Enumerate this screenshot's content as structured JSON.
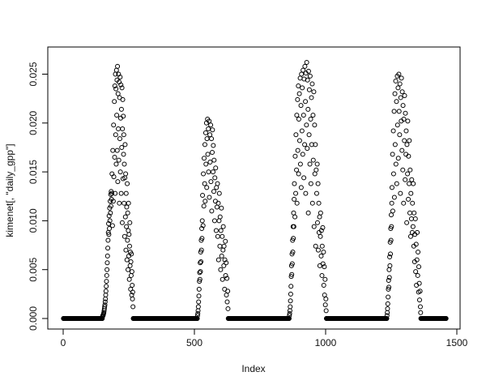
{
  "window": {
    "background": "#ffffff"
  },
  "chart_data": {
    "type": "scatter",
    "title": "",
    "xlabel": "Index",
    "ylabel": "kimenet[, \"daily_gpp\"]",
    "marker": "open-circle",
    "point_color": "#000000",
    "grid": false,
    "legend_position": "none",
    "xlim": [
      0,
      1500
    ],
    "ylim": [
      0,
      0.0268
    ],
    "xticks": [
      0,
      500,
      1000,
      1500
    ],
    "xtick_labels": [
      "0",
      "500",
      "1000",
      "1500"
    ],
    "yticks": [
      0,
      0.005,
      0.01,
      0.015,
      0.02,
      0.025
    ],
    "ytick_labels": [
      "0.000",
      "0.005",
      "0.010",
      "0.015",
      "0.020",
      "0.025"
    ],
    "y_unit": 0.0001,
    "zero_runs": [
      [
        1,
        149
      ],
      [
        267,
        511
      ],
      [
        629,
        861
      ],
      [
        1003,
        1233
      ],
      [
        1363,
        1459
      ]
    ],
    "points": [
      [
        150,
        2
      ],
      [
        151,
        3
      ],
      [
        152,
        3
      ],
      [
        153,
        4
      ],
      [
        154,
        5
      ],
      [
        155,
        6
      ],
      [
        156,
        8
      ],
      [
        157,
        10
      ],
      [
        158,
        12
      ],
      [
        159,
        14
      ],
      [
        160,
        17
      ],
      [
        161,
        20
      ],
      [
        162,
        24
      ],
      [
        163,
        28
      ],
      [
        164,
        33
      ],
      [
        165,
        38
      ],
      [
        166,
        44
      ],
      [
        167,
        50
      ],
      [
        168,
        57
      ],
      [
        169,
        64
      ],
      [
        170,
        72
      ],
      [
        171,
        80
      ],
      [
        172,
        88
      ],
      [
        173,
        97
      ],
      [
        174,
        86
      ],
      [
        175,
        105
      ],
      [
        176,
        92
      ],
      [
        177,
        113
      ],
      [
        178,
        100
      ],
      [
        179,
        120
      ],
      [
        180,
        108
      ],
      [
        181,
        127
      ],
      [
        182,
        115
      ],
      [
        183,
        130
      ],
      [
        184,
        122
      ],
      [
        185,
        128
      ],
      [
        186,
        148
      ],
      [
        188,
        95
      ],
      [
        189,
        172
      ],
      [
        191,
        120
      ],
      [
        192,
        198
      ],
      [
        193,
        145
      ],
      [
        195,
        222
      ],
      [
        196,
        165
      ],
      [
        197,
        238
      ],
      [
        198,
        128
      ],
      [
        199,
        250
      ],
      [
        200,
        188
      ],
      [
        201,
        235
      ],
      [
        202,
        158
      ],
      [
        203,
        254
      ],
      [
        204,
        208
      ],
      [
        205,
        244
      ],
      [
        206,
        172
      ],
      [
        207,
        258
      ],
      [
        208,
        140
      ],
      [
        209,
        230
      ],
      [
        210,
        194
      ],
      [
        211,
        250
      ],
      [
        212,
        162
      ],
      [
        213,
        242
      ],
      [
        214,
        118
      ],
      [
        215,
        226
      ],
      [
        216,
        184
      ],
      [
        217,
        247
      ],
      [
        218,
        150
      ],
      [
        219,
        205
      ],
      [
        220,
        239
      ],
      [
        221,
        128
      ],
      [
        222,
        214
      ],
      [
        223,
        175
      ],
      [
        224,
        236
      ],
      [
        225,
        98
      ],
      [
        226,
        194
      ],
      [
        227,
        224
      ],
      [
        228,
        143
      ],
      [
        229,
        207
      ],
      [
        230,
        168
      ],
      [
        231,
        188
      ],
      [
        232,
        118
      ],
      [
        233,
        158
      ],
      [
        234,
        84
      ],
      [
        235,
        144
      ],
      [
        236,
        178
      ],
      [
        237,
        104
      ],
      [
        238,
        148
      ],
      [
        239,
        70
      ],
      [
        240,
        128
      ],
      [
        241,
        94
      ],
      [
        242,
        114
      ],
      [
        243,
        60
      ],
      [
        244,
        138
      ],
      [
        245,
        80
      ],
      [
        246,
        108
      ],
      [
        247,
        50
      ],
      [
        248,
        90
      ],
      [
        249,
        118
      ],
      [
        250,
        64
      ],
      [
        251,
        86
      ],
      [
        252,
        40
      ],
      [
        253,
        74
      ],
      [
        254,
        98
      ],
      [
        255,
        54
      ],
      [
        256,
        68
      ],
      [
        257,
        30
      ],
      [
        258,
        58
      ],
      [
        259,
        44
      ],
      [
        260,
        66
      ],
      [
        261,
        24
      ],
      [
        262,
        48
      ],
      [
        263,
        34
      ],
      [
        264,
        20
      ],
      [
        265,
        27
      ],
      [
        266,
        12
      ],
      [
        512,
        3
      ],
      [
        513,
        5
      ],
      [
        514,
        8
      ],
      [
        515,
        12
      ],
      [
        516,
        17
      ],
      [
        517,
        23
      ],
      [
        518,
        30
      ],
      [
        519,
        38
      ],
      [
        520,
        47
      ],
      [
        521,
        40
      ],
      [
        522,
        57
      ],
      [
        523,
        48
      ],
      [
        524,
        68
      ],
      [
        525,
        58
      ],
      [
        526,
        80
      ],
      [
        527,
        70
      ],
      [
        528,
        92
      ],
      [
        529,
        82
      ],
      [
        530,
        100
      ],
      [
        531,
        126
      ],
      [
        533,
        95
      ],
      [
        534,
        148
      ],
      [
        536,
        115
      ],
      [
        537,
        164
      ],
      [
        539,
        138
      ],
      [
        540,
        178
      ],
      [
        541,
        120
      ],
      [
        543,
        190
      ],
      [
        544,
        158
      ],
      [
        546,
        200
      ],
      [
        547,
        134
      ],
      [
        548,
        184
      ],
      [
        550,
        204
      ],
      [
        551,
        168
      ],
      [
        553,
        194
      ],
      [
        554,
        150
      ],
      [
        556,
        202
      ],
      [
        557,
        124
      ],
      [
        559,
        188
      ],
      [
        560,
        160
      ],
      [
        562,
        198
      ],
      [
        563,
        140
      ],
      [
        565,
        184
      ],
      [
        566,
        110
      ],
      [
        568,
        170
      ],
      [
        569,
        193
      ],
      [
        571,
        150
      ],
      [
        572,
        177
      ],
      [
        574,
        130
      ],
      [
        575,
        162
      ],
      [
        577,
        100
      ],
      [
        578,
        144
      ],
      [
        580,
        120
      ],
      [
        581,
        154
      ],
      [
        583,
        90
      ],
      [
        584,
        134
      ],
      [
        586,
        114
      ],
      [
        588,
        138
      ],
      [
        589,
        84
      ],
      [
        591,
        118
      ],
      [
        592,
        60
      ],
      [
        594,
        100
      ],
      [
        595,
        128
      ],
      [
        597,
        74
      ],
      [
        598,
        104
      ],
      [
        600,
        50
      ],
      [
        601,
        90
      ],
      [
        603,
        113
      ],
      [
        604,
        64
      ],
      [
        606,
        84
      ],
      [
        607,
        40
      ],
      [
        609,
        70
      ],
      [
        610,
        94
      ],
      [
        612,
        54
      ],
      [
        613,
        74
      ],
      [
        615,
        30
      ],
      [
        616,
        60
      ],
      [
        618,
        79
      ],
      [
        619,
        44
      ],
      [
        621,
        57
      ],
      [
        622,
        24
      ],
      [
        624,
        41
      ],
      [
        625,
        17
      ],
      [
        627,
        28
      ],
      [
        628,
        10
      ],
      [
        862,
        3
      ],
      [
        863,
        5
      ],
      [
        864,
        8
      ],
      [
        865,
        12
      ],
      [
        866,
        18
      ],
      [
        867,
        25
      ],
      [
        868,
        33
      ],
      [
        869,
        43
      ],
      [
        870,
        54
      ],
      [
        871,
        45
      ],
      [
        872,
        66
      ],
      [
        873,
        56
      ],
      [
        874,
        80
      ],
      [
        875,
        68
      ],
      [
        876,
        94
      ],
      [
        877,
        82
      ],
      [
        878,
        108
      ],
      [
        879,
        94
      ],
      [
        880,
        122
      ],
      [
        881,
        138
      ],
      [
        883,
        104
      ],
      [
        884,
        166
      ],
      [
        886,
        128
      ],
      [
        887,
        188
      ],
      [
        889,
        152
      ],
      [
        890,
        208
      ],
      [
        891,
        118
      ],
      [
        893,
        224
      ],
      [
        894,
        172
      ],
      [
        896,
        238
      ],
      [
        897,
        148
      ],
      [
        898,
        204
      ],
      [
        900,
        230
      ],
      [
        901,
        182
      ],
      [
        903,
        246
      ],
      [
        904,
        158
      ],
      [
        906,
        218
      ],
      [
        907,
        134
      ],
      [
        908,
        250
      ],
      [
        910,
        192
      ],
      [
        911,
        236
      ],
      [
        913,
        168
      ],
      [
        914,
        254
      ],
      [
        916,
        208
      ],
      [
        917,
        144
      ],
      [
        918,
        245
      ],
      [
        920,
        178
      ],
      [
        921,
        258
      ],
      [
        923,
        222
      ],
      [
        924,
        128
      ],
      [
        925,
        251
      ],
      [
        927,
        198
      ],
      [
        928,
        262
      ],
      [
        930,
        174
      ],
      [
        931,
        244
      ],
      [
        933,
        214
      ],
      [
        934,
        108
      ],
      [
        935,
        253
      ],
      [
        937,
        188
      ],
      [
        938,
        234
      ],
      [
        940,
        158
      ],
      [
        941,
        248
      ],
      [
        943,
        204
      ],
      [
        944,
        138
      ],
      [
        946,
        226
      ],
      [
        947,
        178
      ],
      [
        949,
        240
      ],
      [
        950,
        118
      ],
      [
        952,
        208
      ],
      [
        953,
        162
      ],
      [
        955,
        232
      ],
      [
        956,
        94
      ],
      [
        958,
        198
      ],
      [
        959,
        148
      ],
      [
        961,
        178
      ],
      [
        962,
        74
      ],
      [
        964,
        152
      ],
      [
        966,
        128
      ],
      [
        968,
        158
      ],
      [
        969,
        98
      ],
      [
        971,
        138
      ],
      [
        972,
        70
      ],
      [
        974,
        118
      ],
      [
        975,
        88
      ],
      [
        977,
        104
      ],
      [
        978,
        54
      ],
      [
        980,
        84
      ],
      [
        981,
        108
      ],
      [
        983,
        64
      ],
      [
        984,
        90
      ],
      [
        986,
        44
      ],
      [
        987,
        74
      ],
      [
        989,
        93
      ],
      [
        990,
        56
      ],
      [
        992,
        68
      ],
      [
        993,
        34
      ],
      [
        995,
        53
      ],
      [
        996,
        24
      ],
      [
        998,
        40
      ],
      [
        999,
        14
      ],
      [
        1001,
        20
      ],
      [
        1002,
        8
      ],
      [
        1234,
        3
      ],
      [
        1235,
        6
      ],
      [
        1236,
        10
      ],
      [
        1237,
        15
      ],
      [
        1238,
        22
      ],
      [
        1239,
        30
      ],
      [
        1240,
        39
      ],
      [
        1241,
        32
      ],
      [
        1242,
        50
      ],
      [
        1243,
        42
      ],
      [
        1244,
        63
      ],
      [
        1245,
        54
      ],
      [
        1246,
        78
      ],
      [
        1247,
        66
      ],
      [
        1248,
        92
      ],
      [
        1249,
        80
      ],
      [
        1250,
        106
      ],
      [
        1251,
        94
      ],
      [
        1252,
        118
      ],
      [
        1253,
        134
      ],
      [
        1255,
        168
      ],
      [
        1256,
        110
      ],
      [
        1258,
        192
      ],
      [
        1259,
        148
      ],
      [
        1261,
        212
      ],
      [
        1262,
        124
      ],
      [
        1264,
        230
      ],
      [
        1265,
        178
      ],
      [
        1267,
        243
      ],
      [
        1268,
        158
      ],
      [
        1270,
        222
      ],
      [
        1271,
        138
      ],
      [
        1273,
        248
      ],
      [
        1274,
        198
      ],
      [
        1276,
        236
      ],
      [
        1277,
        164
      ],
      [
        1279,
        250
      ],
      [
        1280,
        212
      ],
      [
        1282,
        188
      ],
      [
        1283,
        240
      ],
      [
        1285,
        128
      ],
      [
        1286,
        226
      ],
      [
        1288,
        202
      ],
      [
        1289,
        246
      ],
      [
        1291,
        172
      ],
      [
        1292,
        232
      ],
      [
        1294,
        152
      ],
      [
        1295,
        218
      ],
      [
        1297,
        118
      ],
      [
        1298,
        204
      ],
      [
        1300,
        182
      ],
      [
        1301,
        228
      ],
      [
        1303,
        142
      ],
      [
        1304,
        210
      ],
      [
        1306,
        168
      ],
      [
        1307,
        192
      ],
      [
        1309,
        98
      ],
      [
        1310,
        178
      ],
      [
        1312,
        148
      ],
      [
        1313,
        202
      ],
      [
        1315,
        122
      ],
      [
        1316,
        166
      ],
      [
        1318,
        138
      ],
      [
        1319,
        182
      ],
      [
        1321,
        108
      ],
      [
        1322,
        152
      ],
      [
        1324,
        84
      ],
      [
        1325,
        128
      ],
      [
        1327,
        102
      ],
      [
        1328,
        142
      ],
      [
        1330,
        88
      ],
      [
        1331,
        118
      ],
      [
        1333,
        94
      ],
      [
        1334,
        138
      ],
      [
        1336,
        74
      ],
      [
        1337,
        108
      ],
      [
        1339,
        58
      ],
      [
        1340,
        86
      ],
      [
        1342,
        102
      ],
      [
        1343,
        48
      ],
      [
        1345,
        76
      ],
      [
        1346,
        34
      ],
      [
        1348,
        60
      ],
      [
        1349,
        88
      ],
      [
        1351,
        44
      ],
      [
        1352,
        68
      ],
      [
        1354,
        27
      ],
      [
        1355,
        53
      ],
      [
        1357,
        36
      ],
      [
        1358,
        19
      ],
      [
        1360,
        28
      ],
      [
        1361,
        12
      ],
      [
        1362,
        6
      ]
    ]
  }
}
